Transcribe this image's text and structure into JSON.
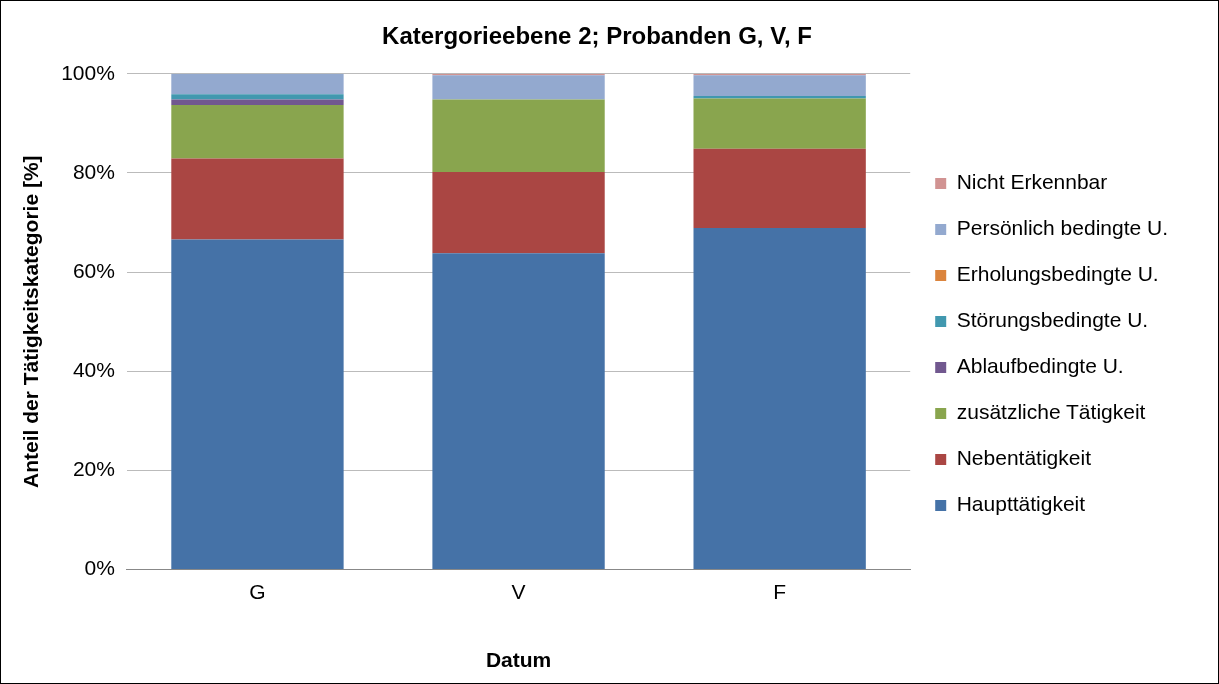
{
  "chart_data": {
    "type": "bar",
    "title": "Katergorieebene 2; Probanden G, V, F",
    "xlabel": "Datum",
    "ylabel": "Anteil der Tätigkeitskategorie [%]",
    "categories": [
      "G",
      "V",
      "F"
    ],
    "stacked": true,
    "ylim": [
      0,
      100
    ],
    "yticks": [
      {
        "value": 0,
        "label": "0%"
      },
      {
        "value": 20,
        "label": "20%"
      },
      {
        "value": 40,
        "label": "40%"
      },
      {
        "value": 60,
        "label": "60%"
      },
      {
        "value": 80,
        "label": "80%"
      },
      {
        "value": 100,
        "label": "100%"
      }
    ],
    "grid": "y",
    "legend": "right",
    "series": [
      {
        "name": "Haupttätigkeit",
        "color": "#4572a7",
        "values": [
          66.6,
          63.8,
          68.9
        ]
      },
      {
        "name": "Nebentätigkeit",
        "color": "#aa4643",
        "values": [
          16.3,
          16.4,
          16.0
        ]
      },
      {
        "name": "zusätzliche Tätigkeit",
        "color": "#89a54e",
        "values": [
          10.8,
          14.6,
          10.1
        ]
      },
      {
        "name": "Ablaufbedingte U.",
        "color": "#71588f",
        "values": [
          1.1,
          0,
          0
        ]
      },
      {
        "name": "Störungsbedingte U.",
        "color": "#4198af",
        "values": [
          1.1,
          0,
          0.5
        ]
      },
      {
        "name": "Erholungsbedingte U.",
        "color": "#db843d",
        "values": [
          0,
          0,
          0
        ]
      },
      {
        "name": "Persönlich bedingte U.",
        "color": "#93a9cf",
        "values": [
          4.1,
          4.9,
          4.2
        ]
      },
      {
        "name": "Nicht Erkennbar",
        "color": "#d19392",
        "values": [
          0,
          0.3,
          0.3
        ]
      }
    ]
  }
}
